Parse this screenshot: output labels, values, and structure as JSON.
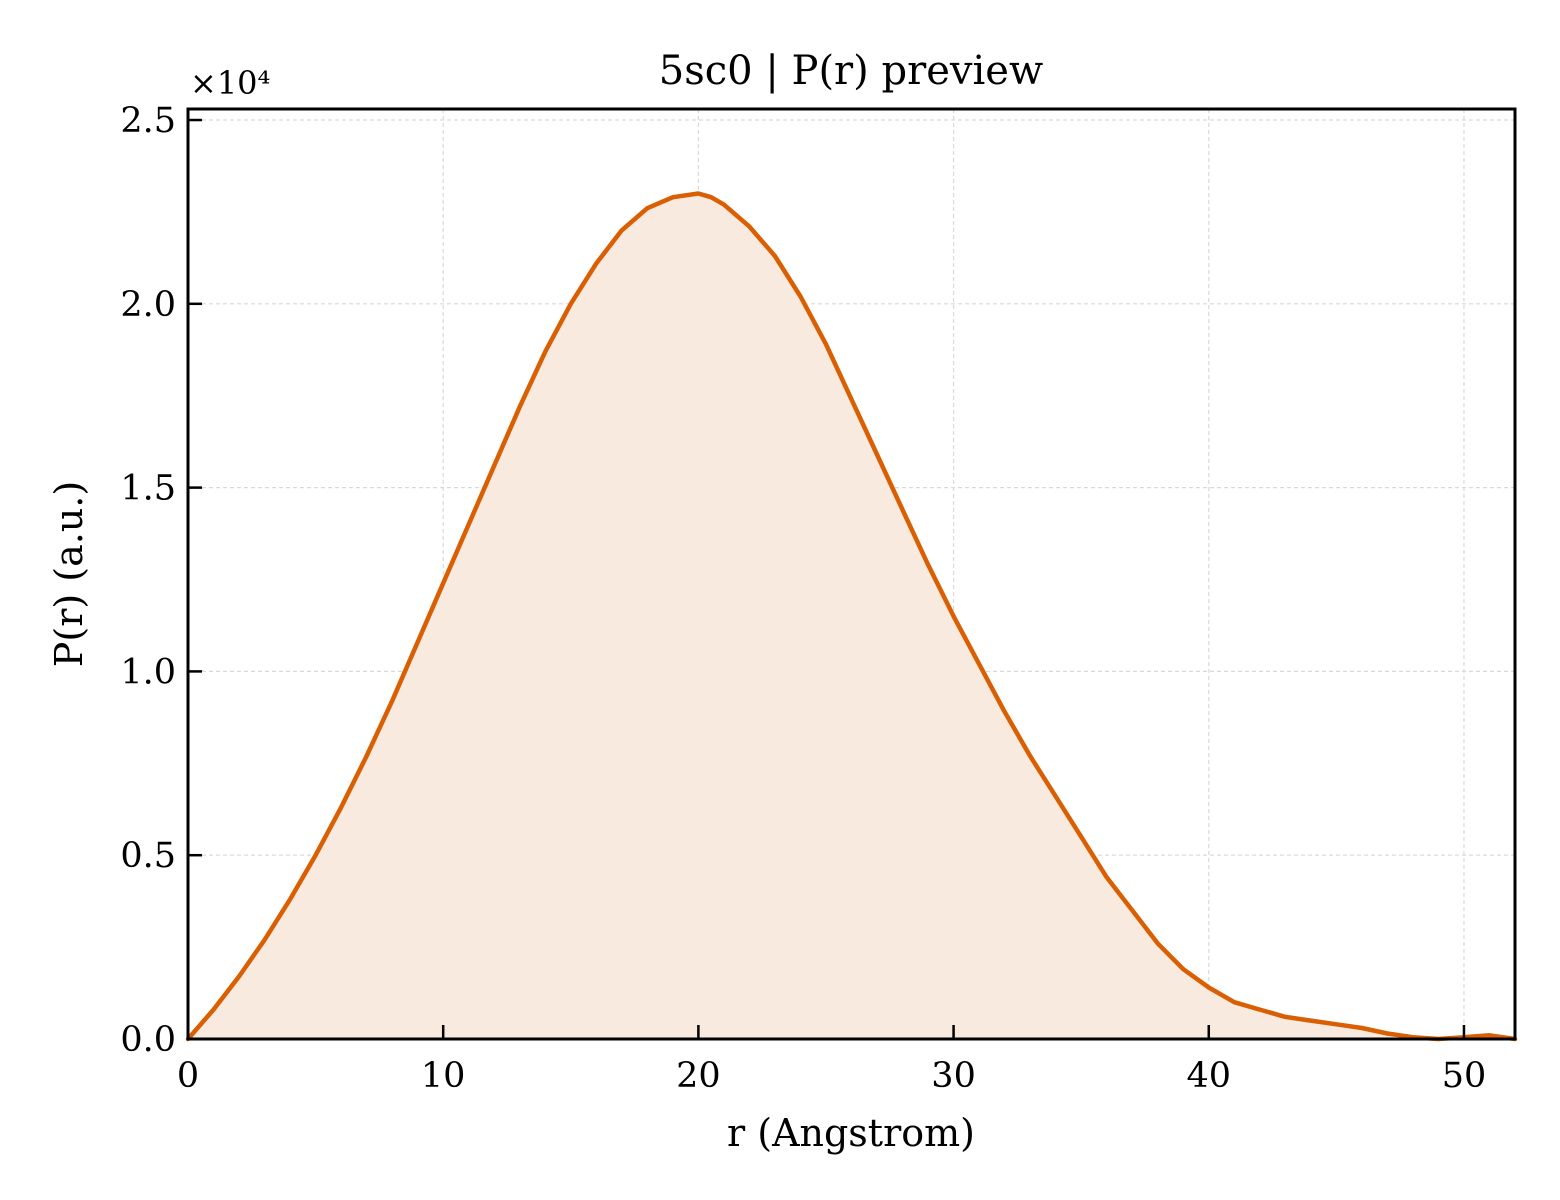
{
  "chart_data": {
    "type": "area",
    "title": "5sc0 | P(r) preview",
    "xlabel": "r (Angstrom)",
    "ylabel": "P(r) (a.u.)",
    "y_multiplier_label": "×10⁴",
    "xlim": [
      0,
      52
    ],
    "ylim": [
      0,
      2.53
    ],
    "y_scale_factor": 10000,
    "xticks": [
      0,
      10,
      20,
      30,
      40,
      50
    ],
    "yticks": [
      0.0,
      0.5,
      1.0,
      1.5,
      2.0,
      2.5
    ],
    "xtick_labels": [
      "0",
      "10",
      "20",
      "30",
      "40",
      "50"
    ],
    "ytick_labels": [
      "0.0",
      "0.5",
      "1.0",
      "1.5",
      "2.0",
      "2.5"
    ],
    "grid": true,
    "colors": {
      "line": "#d95f02",
      "fill": "#f8eadf",
      "grid": "#d9d9d9"
    },
    "series": [
      {
        "x": [
          0,
          1,
          2,
          3,
          4,
          5,
          6,
          7,
          8,
          9,
          10,
          11,
          12,
          13,
          14,
          15,
          16,
          17,
          18,
          19,
          20,
          20.5,
          21,
          22,
          23,
          24,
          25,
          26,
          27,
          28,
          29,
          30,
          31,
          32,
          33,
          34,
          35,
          36,
          37,
          38,
          39,
          40,
          41,
          42,
          43,
          44,
          45,
          46,
          47,
          48,
          49,
          50,
          51,
          52
        ],
        "y": [
          0.0,
          0.08,
          0.17,
          0.27,
          0.38,
          0.5,
          0.63,
          0.77,
          0.92,
          1.08,
          1.24,
          1.4,
          1.56,
          1.72,
          1.87,
          2.0,
          2.11,
          2.2,
          2.26,
          2.29,
          2.3,
          2.29,
          2.27,
          2.21,
          2.13,
          2.02,
          1.89,
          1.74,
          1.59,
          1.44,
          1.29,
          1.15,
          1.02,
          0.89,
          0.77,
          0.66,
          0.55,
          0.44,
          0.35,
          0.26,
          0.19,
          0.14,
          0.1,
          0.08,
          0.06,
          0.05,
          0.04,
          0.03,
          0.015,
          0.005,
          0.0,
          0.005,
          0.01,
          0.0
        ]
      }
    ]
  }
}
